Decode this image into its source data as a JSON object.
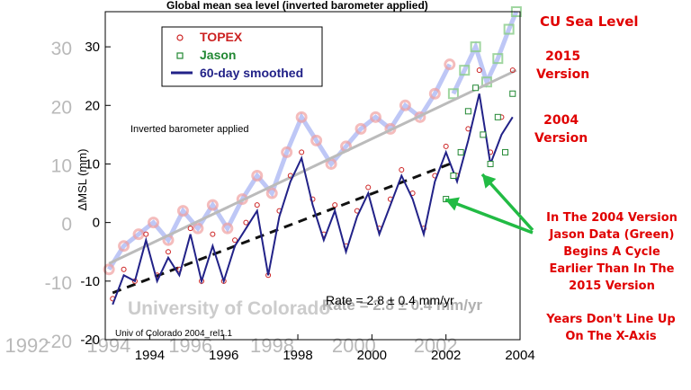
{
  "chart_data": {
    "type": "scatter",
    "title": "Global mean sea level (inverted barometer applied)",
    "ylabel": "ΔMSL (mm)",
    "xlim": [
      1992.8,
      2004.0
    ],
    "ylim": [
      -20,
      36
    ],
    "yticks": [
      -20,
      -10,
      0,
      10,
      20,
      30
    ],
    "xticks": [
      1994,
      1996,
      1998,
      2000,
      2002,
      2004
    ],
    "ghost_yticks": [
      -20,
      -10,
      0,
      10,
      20,
      30
    ],
    "ghost_xticks": [
      1992,
      1994,
      1996,
      1998,
      2000,
      2002
    ],
    "grid": false,
    "legend": {
      "placement": "top-left",
      "entries": [
        {
          "label": "TOPEX",
          "marker": "circle",
          "color": "#cc2222"
        },
        {
          "label": "Jason",
          "marker": "square",
          "color": "#228833"
        },
        {
          "label": "60-day smoothed",
          "marker": "line",
          "color": "#222288"
        }
      ]
    },
    "annotations": {
      "inner_note": "Inverted barometer applied",
      "rate": "Rate = 2.8 ± 0.4 mm/yr",
      "ghost_rate": "Rate = 2.8 ± 0.4 mm/yr",
      "footer": "Univ of Colorado 2004_rel1.1",
      "watermark": "University of Colorado"
    },
    "series": [
      {
        "name": "TOPEX",
        "x": [
          1993.0,
          1993.3,
          1993.6,
          1993.9,
          1994.2,
          1994.5,
          1994.8,
          1995.1,
          1995.4,
          1995.7,
          1996.0,
          1996.3,
          1996.6,
          1996.9,
          1997.2,
          1997.5,
          1997.8,
          1998.1,
          1998.4,
          1998.7,
          1999.0,
          1999.3,
          1999.6,
          1999.9,
          2000.2,
          2000.5,
          2000.8,
          2001.1,
          2001.4,
          2001.7,
          2002.0,
          2002.3,
          2002.6,
          2002.9,
          2003.2,
          2003.5,
          2003.8
        ],
        "y": [
          -13,
          -8,
          -10,
          -2,
          -9,
          -5,
          -8,
          -1,
          -10,
          -2,
          -10,
          -3,
          0,
          3,
          -9,
          2,
          8,
          12,
          4,
          -2,
          3,
          -4,
          2,
          6,
          -1,
          4,
          9,
          5,
          -1,
          8,
          13,
          8,
          16,
          26,
          12,
          18,
          26
        ]
      },
      {
        "name": "Jason",
        "x": [
          2002.0,
          2002.2,
          2002.4,
          2002.6,
          2002.8,
          2003.0,
          2003.2,
          2003.4,
          2003.6,
          2003.8
        ],
        "y": [
          4,
          8,
          12,
          19,
          23,
          15,
          10,
          18,
          12,
          22
        ]
      },
      {
        "name": "60-day smoothed",
        "x": [
          1993.0,
          1993.3,
          1993.6,
          1993.9,
          1994.2,
          1994.5,
          1994.8,
          1995.1,
          1995.4,
          1995.7,
          1996.0,
          1996.3,
          1996.6,
          1996.9,
          1997.2,
          1997.5,
          1997.8,
          1998.1,
          1998.4,
          1998.7,
          1999.0,
          1999.3,
          1999.6,
          1999.9,
          2000.2,
          2000.5,
          2000.8,
          2001.1,
          2001.4,
          2001.7,
          2002.0,
          2002.3,
          2002.6,
          2002.9,
          2003.2,
          2003.5,
          2003.8
        ],
        "y": [
          -14,
          -9,
          -10,
          -3,
          -10,
          -6,
          -9,
          -2,
          -10,
          -4,
          -10,
          -4,
          -1,
          2,
          -9,
          1,
          7,
          11,
          3,
          -3,
          2,
          -5,
          1,
          5,
          -2,
          3,
          8,
          4,
          -2,
          7,
          12,
          7,
          14,
          22,
          10,
          15,
          18
        ]
      },
      {
        "name": "2015 TOPEX",
        "x": [
          1992.9,
          1993.3,
          1993.7,
          1994.1,
          1994.5,
          1994.9,
          1995.3,
          1995.7,
          1996.1,
          1996.5,
          1996.9,
          1997.3,
          1997.7,
          1998.1,
          1998.5,
          1998.9,
          1999.3,
          1999.7,
          2000.1,
          2000.5,
          2000.9,
          2001.3,
          2001.7,
          2002.1
        ],
        "y": [
          -8,
          -4,
          -2,
          0,
          -3,
          2,
          -1,
          3,
          -1,
          4,
          8,
          5,
          12,
          18,
          14,
          10,
          13,
          16,
          18,
          16,
          20,
          18,
          22,
          27
        ]
      },
      {
        "name": "2015 Jason",
        "x": [
          2002.2,
          2002.5,
          2002.8,
          2003.1,
          2003.4,
          2003.7,
          2003.9
        ],
        "y": [
          22,
          26,
          30,
          24,
          28,
          33,
          36
        ]
      }
    ],
    "trend_lines": [
      {
        "name": "2004 trend",
        "x": [
          1993.0,
          2002.1
        ],
        "y": [
          -12,
          10
        ]
      },
      {
        "name": "2015 trend",
        "x": [
          1992.9,
          2003.9
        ],
        "y": [
          -7,
          26
        ]
      }
    ]
  },
  "overlay": {
    "cu_label": "CU Sea Level",
    "v2015_line1": "2015",
    "v2015_line2": "Version",
    "v2004_line1": "2004",
    "v2004_line2": "Version",
    "note1_lines": [
      "In The 2004 Version",
      "Jason Data (Green)",
      "Begins A Cycle",
      "Earlier Than In The",
      "2015 Version"
    ],
    "note2_lines": [
      "Years Don't Line Up",
      "On The X-Axis"
    ],
    "arrow_color": "#22bb44",
    "note_color": "#e00000"
  }
}
